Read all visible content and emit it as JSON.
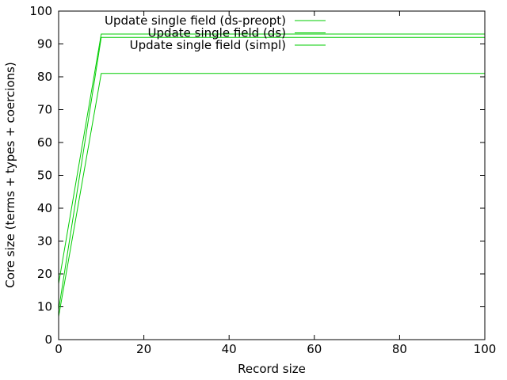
{
  "chart_data": {
    "type": "line",
    "title": "",
    "xlabel": "Record size",
    "ylabel": "Core size (terms + types + coercions)",
    "xlim": [
      0,
      100
    ],
    "ylim": [
      0,
      100
    ],
    "xticks": [
      0,
      20,
      40,
      60,
      80,
      100
    ],
    "yticks": [
      0,
      10,
      20,
      30,
      40,
      50,
      60,
      70,
      80,
      90,
      100
    ],
    "grid": false,
    "legend_position": "top-right",
    "series": [
      {
        "name": "Update single field (ds-preopt)",
        "color": "#00cc00",
        "x": [
          0,
          10,
          100
        ],
        "y": [
          17,
          93,
          93
        ]
      },
      {
        "name": "Update single field (ds)",
        "color": "#00cc00",
        "x": [
          0,
          10,
          100
        ],
        "y": [
          9,
          92,
          92
        ]
      },
      {
        "name": "Update single field (simpl)",
        "color": "#00cc00",
        "x": [
          0,
          10,
          100
        ],
        "y": [
          7,
          81,
          81
        ]
      }
    ]
  }
}
